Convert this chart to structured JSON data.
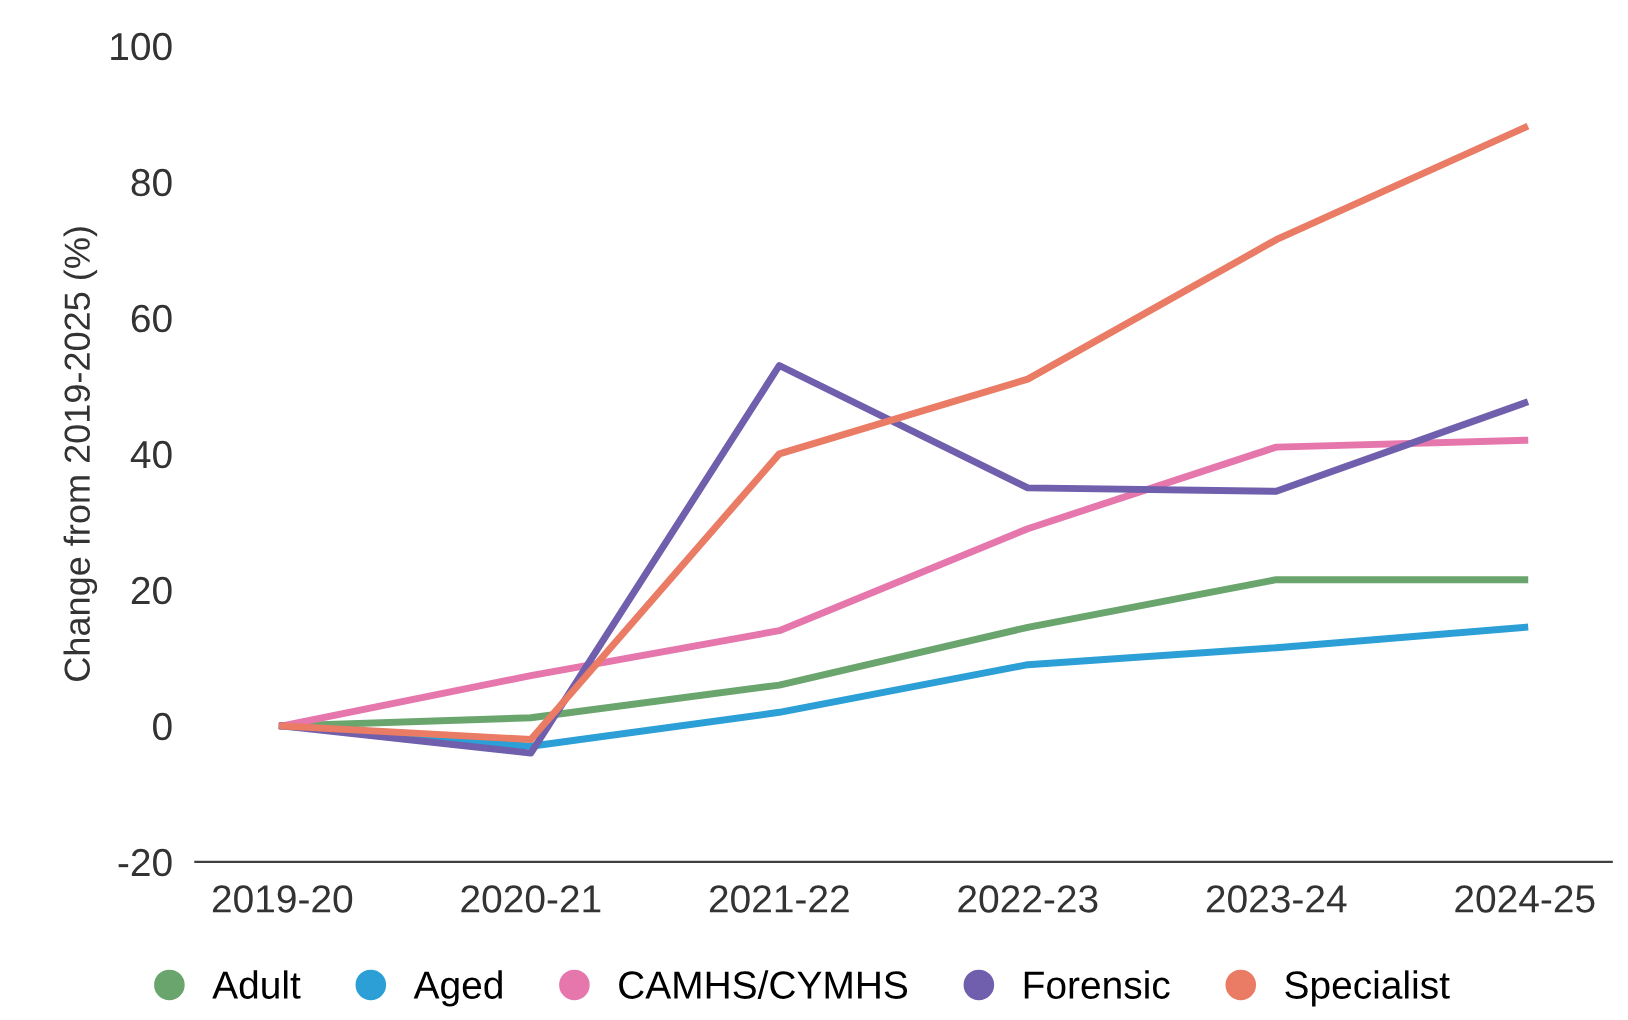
{
  "chart_data": {
    "type": "line",
    "ylabel": "Change from 2019-2025 (%)",
    "categories": [
      "2019-20",
      "2020-21",
      "2021-22",
      "2022-23",
      "2023-24",
      "2024-25"
    ],
    "series": [
      {
        "name": "Adult",
        "color": "#6aa56e",
        "values": [
          0,
          1.2,
          6,
          14.5,
          21.5,
          21.5
        ]
      },
      {
        "name": "Aged",
        "color": "#2b9fd6",
        "values": [
          0,
          -3,
          2,
          9,
          11.5,
          14.5
        ]
      },
      {
        "name": "CAMHS/CYMHS",
        "color": "#e677ad",
        "values": [
          0,
          7.4,
          14,
          29,
          41,
          42
        ]
      },
      {
        "name": "Forensic",
        "color": "#6f5fac",
        "values": [
          0,
          -4,
          53,
          35,
          34.5,
          47.5
        ]
      },
      {
        "name": "Specialist",
        "color": "#ea7b64",
        "values": [
          0,
          -2,
          40,
          51,
          71.5,
          88
        ]
      }
    ],
    "ylim": [
      -20,
      100
    ],
    "yticks": [
      -20,
      0,
      20,
      40,
      60,
      80,
      100
    ],
    "grid": false,
    "legend": "bottom",
    "marker": "none",
    "line_style": "solid"
  }
}
